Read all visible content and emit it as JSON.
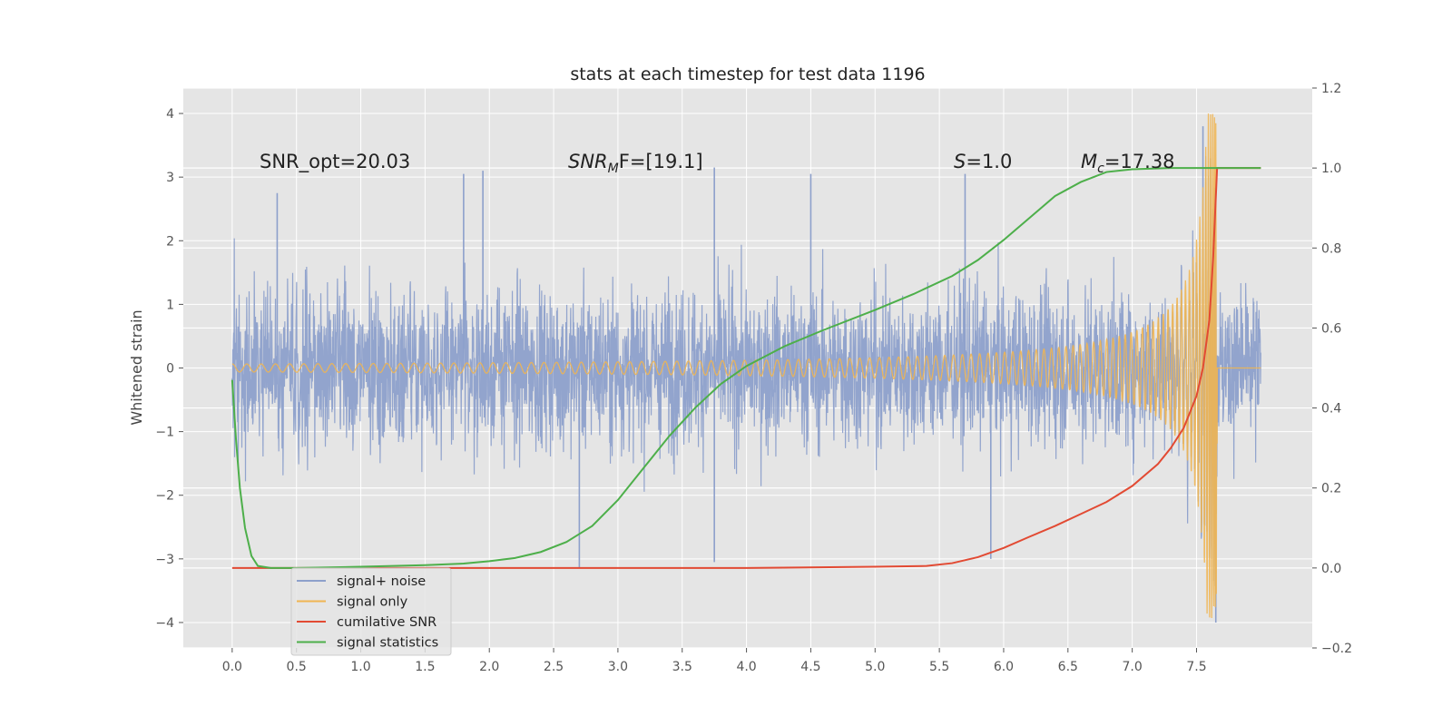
{
  "chart_data": {
    "type": "line",
    "title": "stats at each timestep for test data 1196",
    "ylabel": "Whitened strain",
    "xlim": [
      -0.38,
      8.4
    ],
    "ylim": [
      -4.4,
      4.4
    ],
    "y2lim": [
      -0.2,
      1.2
    ],
    "xticks": [
      "0.0",
      "0.5",
      "1.0",
      "1.5",
      "2.0",
      "2.5",
      "3.0",
      "3.5",
      "4.0",
      "4.5",
      "5.0",
      "5.5",
      "6.0",
      "6.5",
      "7.0",
      "7.5"
    ],
    "yticks": [
      "4",
      "3",
      "2",
      "1",
      "0",
      "−1",
      "−2",
      "−3",
      "−4"
    ],
    "y2ticks": [
      "1.2",
      "1.0",
      "0.8",
      "0.6",
      "0.4",
      "0.2",
      "0.0",
      "−0.2"
    ],
    "grid": true,
    "legend_position": "lower-left",
    "annotations": {
      "snr_opt": "SNR_opt=20.03",
      "snr_mf_main": "SNR",
      "snr_mf_sub": "M",
      "snr_mf_rest": "F=[19.1]",
      "s_main": "S",
      "s_rest": "=1.0",
      "mc_main": "M",
      "mc_sub": "c",
      "mc_rest": "=17.38"
    },
    "series": [
      {
        "name": "signal+ noise",
        "color": "#8da0cb",
        "axis": "left",
        "x_range": [
          0.0,
          8.0
        ],
        "typical_envelope": [
          -2.0,
          2.0
        ],
        "peak_values": [
          {
            "x": 0.35,
            "y": 2.75
          },
          {
            "x": 1.8,
            "y": 3.05
          },
          {
            "x": 1.95,
            "y": 3.1
          },
          {
            "x": 2.7,
            "y": -3.15
          },
          {
            "x": 3.75,
            "y": 3.15
          },
          {
            "x": 3.75,
            "y": -3.05
          },
          {
            "x": 4.5,
            "y": 3.05
          },
          {
            "x": 5.7,
            "y": 3.05
          },
          {
            "x": 5.9,
            "y": -3.0
          },
          {
            "x": 7.55,
            "y": 3.8
          },
          {
            "x": 7.65,
            "y": -4.0
          }
        ]
      },
      {
        "name": "signal only",
        "color": "#f0b552",
        "axis": "left",
        "chirp_start": 0.0,
        "chirp_end": 7.66,
        "max_amplitude": 4.0
      },
      {
        "name": "cumilative SNR",
        "color": "#e24a33",
        "axis": "right",
        "x": [
          0.0,
          1.0,
          2.0,
          3.0,
          4.0,
          5.0,
          5.4,
          5.6,
          5.8,
          6.0,
          6.2,
          6.4,
          6.6,
          6.8,
          7.0,
          7.2,
          7.3,
          7.4,
          7.5,
          7.55,
          7.6,
          7.63,
          7.66,
          8.0
        ],
        "y": [
          0.0,
          0.0,
          0.0,
          0.0,
          0.0,
          0.003,
          0.005,
          0.012,
          0.027,
          0.05,
          0.078,
          0.105,
          0.135,
          0.165,
          0.205,
          0.26,
          0.3,
          0.35,
          0.43,
          0.5,
          0.62,
          0.78,
          1.0,
          1.0
        ]
      },
      {
        "name": "signal statistics",
        "color": "#4daf4a",
        "axis": "right",
        "x": [
          0.0,
          0.03,
          0.06,
          0.1,
          0.15,
          0.2,
          0.3,
          0.5,
          1.0,
          1.5,
          1.8,
          2.0,
          2.2,
          2.4,
          2.6,
          2.8,
          3.0,
          3.2,
          3.4,
          3.6,
          3.8,
          4.0,
          4.3,
          4.6,
          5.0,
          5.3,
          5.6,
          5.8,
          6.0,
          6.2,
          6.4,
          6.6,
          6.8,
          7.0,
          7.3,
          7.6,
          8.0
        ],
        "y": [
          0.47,
          0.32,
          0.2,
          0.1,
          0.03,
          0.005,
          0.0,
          0.0,
          0.003,
          0.007,
          0.011,
          0.017,
          0.025,
          0.04,
          0.065,
          0.105,
          0.17,
          0.25,
          0.33,
          0.4,
          0.46,
          0.505,
          0.555,
          0.595,
          0.645,
          0.685,
          0.73,
          0.77,
          0.82,
          0.875,
          0.93,
          0.965,
          0.99,
          0.997,
          1.0,
          1.0,
          1.0
        ]
      }
    ]
  }
}
